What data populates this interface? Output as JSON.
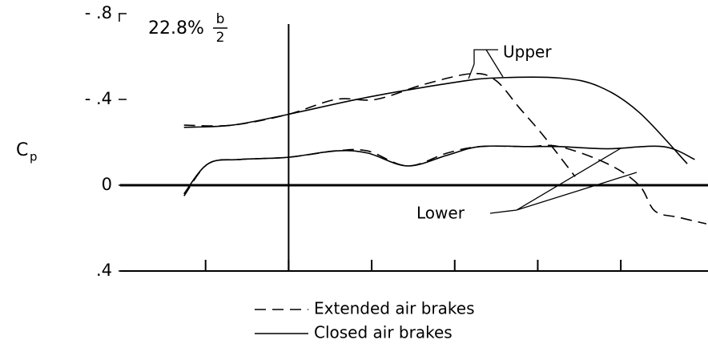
{
  "chart_data": {
    "type": "line",
    "station": "22.8%",
    "fraction": {
      "numerator": "b",
      "denominator": "2"
    },
    "ylabel": {
      "main": "C",
      "sub": "p"
    },
    "annotations": {
      "upper": "Upper",
      "lower": "Lower"
    },
    "xlim": [
      0,
      7.05
    ],
    "xticks": [
      1,
      2,
      3,
      4,
      5,
      6
    ],
    "reference_x": 2,
    "ylim": [
      0.4,
      -0.8
    ],
    "yticks": [
      {
        "value": -0.8,
        "label": "- .8"
      },
      {
        "value": -0.4,
        "label": "- .4"
      },
      0,
      {
        "value": 0.4,
        "label": ".4"
      }
    ],
    "series": [
      {
        "name": "Extended air brakes",
        "dashed": true,
        "upper": {
          "x": [
            0.74,
            1.32,
            1.99,
            2.57,
            3.05,
            3.63,
            4.2,
            4.49,
            4.78,
            5.07,
            5.45
          ],
          "values": [
            -0.28,
            -0.28,
            -0.33,
            -0.4,
            -0.4,
            -0.47,
            -0.52,
            -0.49,
            -0.36,
            -0.23,
            -0.04
          ]
        },
        "lower": {
          "x": [
            0.74,
            1.03,
            1.41,
            1.99,
            2.57,
            2.95,
            3.43,
            3.91,
            4.3,
            4.88,
            5.26,
            5.84,
            6.22,
            6.41,
            6.7,
            7.03
          ],
          "values": [
            0.05,
            -0.1,
            -0.12,
            -0.13,
            -0.16,
            -0.16,
            -0.09,
            -0.15,
            -0.18,
            -0.18,
            -0.18,
            -0.1,
            0.0,
            0.12,
            0.15,
            0.18
          ]
        }
      },
      {
        "name": "Closed air brakes",
        "dashed": false,
        "upper": {
          "x": [
            0.74,
            1.32,
            1.99,
            2.95,
            4.01,
            4.49,
            5.26,
            5.74,
            6.22,
            6.8
          ],
          "values": [
            -0.27,
            -0.28,
            -0.33,
            -0.41,
            -0.48,
            -0.5,
            -0.5,
            -0.46,
            -0.34,
            -0.1
          ]
        },
        "lower": {
          "x": [
            0.74,
            1.03,
            1.41,
            1.99,
            2.57,
            2.95,
            3.43,
            3.91,
            4.3,
            4.88,
            5.26,
            5.84,
            6.51,
            6.89
          ],
          "values": [
            0.04,
            -0.1,
            -0.12,
            -0.13,
            -0.16,
            -0.15,
            -0.09,
            -0.14,
            -0.18,
            -0.18,
            -0.18,
            -0.17,
            -0.18,
            -0.12
          ]
        }
      }
    ]
  }
}
